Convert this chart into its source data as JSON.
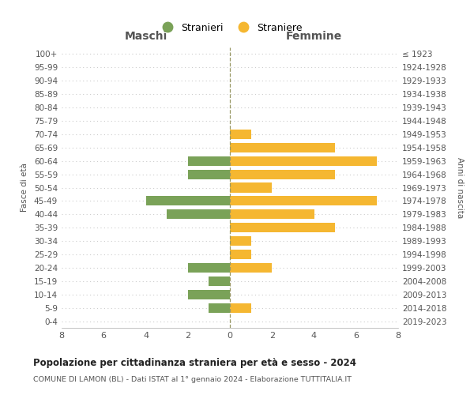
{
  "age_groups": [
    "100+",
    "95-99",
    "90-94",
    "85-89",
    "80-84",
    "75-79",
    "70-74",
    "65-69",
    "60-64",
    "55-59",
    "50-54",
    "45-49",
    "40-44",
    "35-39",
    "30-34",
    "25-29",
    "20-24",
    "15-19",
    "10-14",
    "5-9",
    "0-4"
  ],
  "birth_years": [
    "≤ 1923",
    "1924-1928",
    "1929-1933",
    "1934-1938",
    "1939-1943",
    "1944-1948",
    "1949-1953",
    "1954-1958",
    "1959-1963",
    "1964-1968",
    "1969-1973",
    "1974-1978",
    "1979-1983",
    "1984-1988",
    "1989-1993",
    "1994-1998",
    "1999-2003",
    "2004-2008",
    "2009-2013",
    "2014-2018",
    "2019-2023"
  ],
  "maschi": [
    0,
    0,
    0,
    0,
    0,
    0,
    0,
    0,
    2,
    2,
    0,
    4,
    3,
    0,
    0,
    0,
    2,
    1,
    2,
    1,
    0
  ],
  "femmine": [
    0,
    0,
    0,
    0,
    0,
    0,
    1,
    5,
    7,
    5,
    2,
    7,
    4,
    5,
    1,
    1,
    2,
    0,
    0,
    1,
    0
  ],
  "color_maschi": "#7aa258",
  "color_femmine": "#f5b731",
  "title": "Popolazione per cittadinanza straniera per età e sesso - 2024",
  "subtitle": "COMUNE DI LAMON (BL) - Dati ISTAT al 1° gennaio 2024 - Elaborazione TUTTITALIA.IT",
  "label_maschi": "Maschi",
  "label_femmine": "Femmine",
  "ylabel_left": "Fasce di età",
  "ylabel_right": "Anni di nascita",
  "legend_maschi": "Stranieri",
  "legend_femmine": "Straniere",
  "xlim": 8,
  "background_color": "#ffffff",
  "grid_color": "#cccccc",
  "centerline_color": "#999966"
}
